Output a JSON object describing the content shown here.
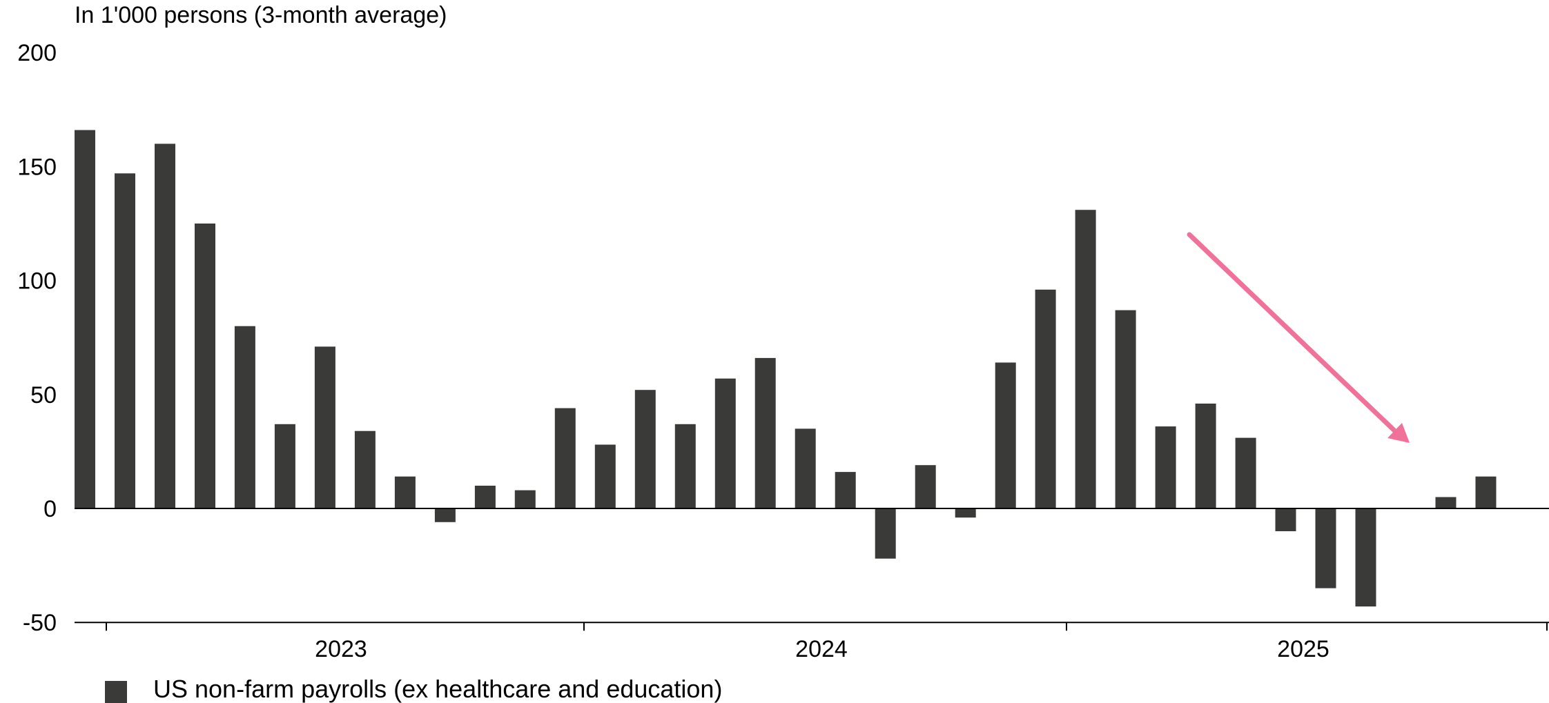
{
  "chart_data": {
    "type": "bar",
    "unit_label": "In 1'000 persons (3-month average)",
    "ylim": [
      -50,
      200
    ],
    "y_ticks": [
      200,
      150,
      100,
      50,
      0,
      -50
    ],
    "x_tick_labels": [
      "2023",
      "2024",
      "2025"
    ],
    "grid": false,
    "legend_position": "bottom-left",
    "series": [
      {
        "name": "US non-farm payrolls (ex healthcare and education)",
        "color": "#3a3b39",
        "values": [
          166,
          147,
          160,
          125,
          80,
          37,
          71,
          34,
          14,
          -6,
          10,
          8,
          44,
          28,
          52,
          37,
          57,
          66,
          35,
          16,
          -22,
          19,
          -4,
          64,
          96,
          131,
          87,
          36,
          46,
          31,
          -10,
          -35,
          -43,
          0,
          5,
          14
        ]
      }
    ],
    "annotation": {
      "type": "arrow",
      "color": "#f0729a",
      "meaning": "downward trend"
    }
  }
}
